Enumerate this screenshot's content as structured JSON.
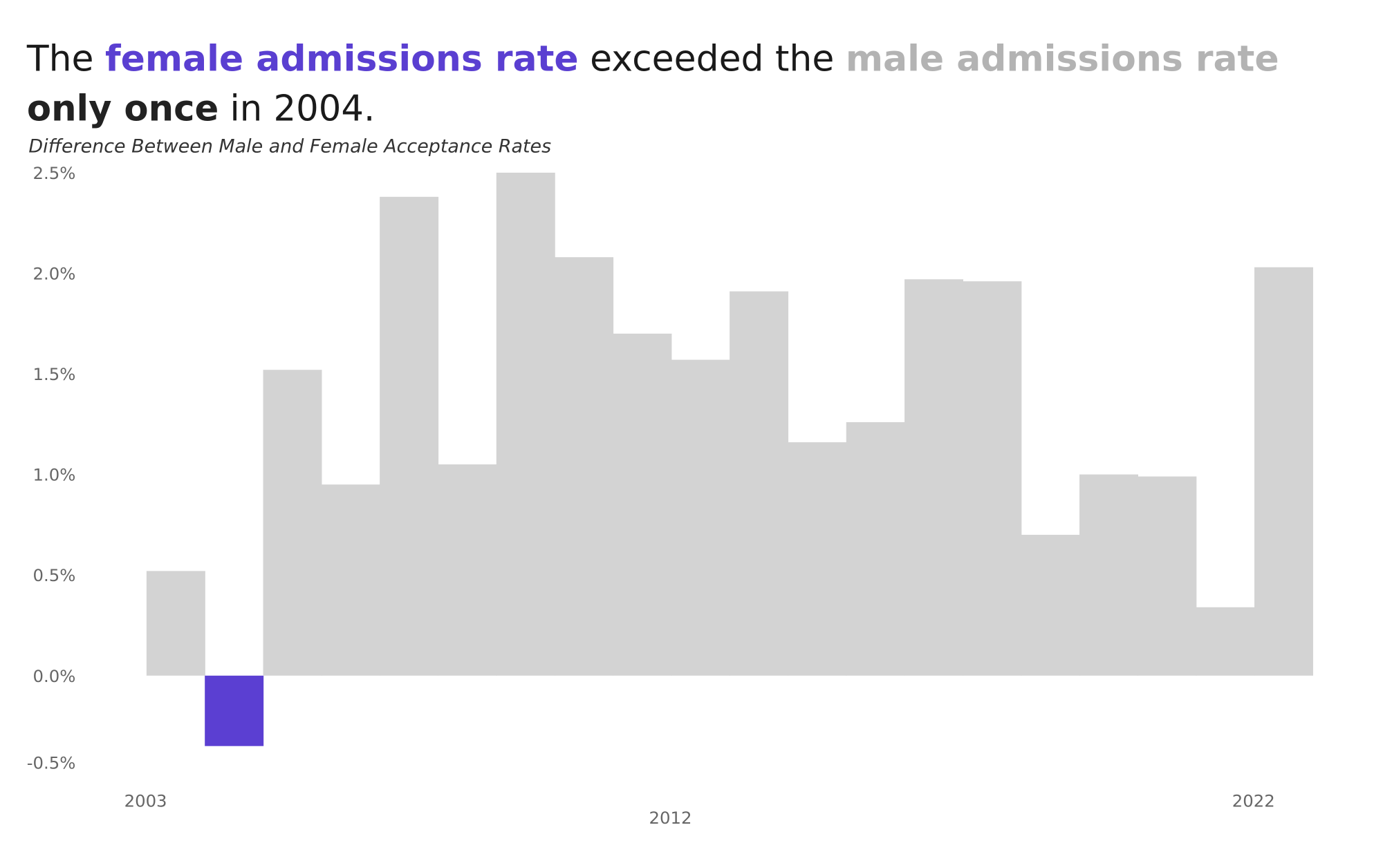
{
  "title": {
    "line1": [
      {
        "text": "The ",
        "style": "normal",
        "color": "#1a1a1a"
      },
      {
        "text": "female admissions rate",
        "style": "bold",
        "color": "#5a3fd1"
      },
      {
        "text": " exceeded the ",
        "style": "normal",
        "color": "#1a1a1a"
      },
      {
        "text": "male admissions rate",
        "style": "bold",
        "color": "#b3b3b3"
      }
    ],
    "line2": [
      {
        "text": "only once",
        "style": "bold",
        "color": "#222222"
      },
      {
        "text": " in 2004.",
        "style": "normal",
        "color": "#1a1a1a"
      }
    ]
  },
  "chart_data": {
    "type": "bar",
    "title": "The female admissions rate exceeded the male admissions rate only once in 2004.",
    "subtitle": "Difference Between Male and Female Acceptance Rates",
    "xlabel": "",
    "ylabel": "",
    "categories": [
      2003,
      2004,
      2005,
      2006,
      2007,
      2008,
      2009,
      2010,
      2011,
      2012,
      2013,
      2014,
      2015,
      2016,
      2017,
      2018,
      2019,
      2020,
      2021,
      2022
    ],
    "values": [
      0.52,
      -0.35,
      1.52,
      0.95,
      2.38,
      1.05,
      2.5,
      2.08,
      1.7,
      1.57,
      1.91,
      1.16,
      1.26,
      1.97,
      1.96,
      0.7,
      1.0,
      0.99,
      0.34,
      2.03
    ],
    "ylim": [
      -0.5,
      2.5
    ],
    "y_ticks": [
      {
        "value": 2.5,
        "label": "2.5%"
      },
      {
        "value": 2.0,
        "label": "2.0%"
      },
      {
        "value": 1.5,
        "label": "1.5%"
      },
      {
        "value": 1.0,
        "label": "1.0%"
      },
      {
        "value": 0.5,
        "label": "0.5%"
      },
      {
        "value": 0.0,
        "label": "0.0%"
      },
      {
        "value": -0.5,
        "label": "-0.5%"
      }
    ],
    "x_ticks": [
      {
        "value": 2003,
        "label": "2003",
        "row": 0
      },
      {
        "value": 2012,
        "label": "2012",
        "row": 1
      },
      {
        "value": 2022,
        "label": "2022",
        "row": 0
      }
    ],
    "colors": {
      "default": "#d3d3d3",
      "highlight": "#5b3fd2"
    },
    "highlight_category": 2004,
    "grid": false,
    "legend": "none"
  }
}
